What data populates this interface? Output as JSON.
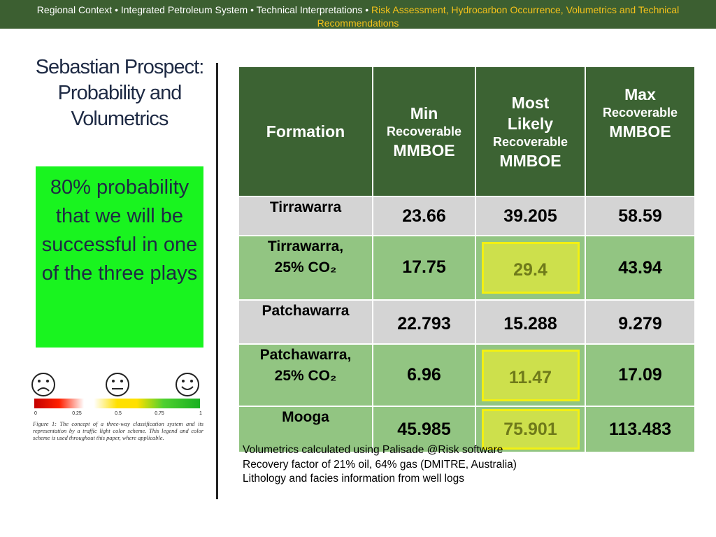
{
  "header": {
    "part1": "Regional Context • Integrated Petroleum System • Technical Interpretations • ",
    "highlight": "Risk Assessment,  Hydrocarbon Occurrence, Volumetrics and Technical Recommendations"
  },
  "title": "Sebastian Prospect: Probability and Volumetrics",
  "probability_box": "80% probability that we will be successful in one of the three plays",
  "legend": {
    "faces": [
      "sad-face",
      "neutral-face",
      "happy-face"
    ],
    "ticks": [
      "0",
      "0.25",
      "0.5",
      "0.75",
      "1"
    ],
    "colors": [
      "#c40000",
      "#ffffff",
      "#ffe000",
      "#18b020"
    ],
    "caption": "Figure 1: The concept of a three-way classification system and its representation by a traffic light color scheme. This legend and color scheme is used throughout this paper, where applicable."
  },
  "table": {
    "headers": {
      "formation": "Formation",
      "min": {
        "a": "Min",
        "b": "Recoverable",
        "c": "MMBOE"
      },
      "most_likely": {
        "a": "Most Likely",
        "b": "Recoverable",
        "c": "MMBOE"
      },
      "max": {
        "a": "Max",
        "b": "Recoverable",
        "c": "MMBOE"
      }
    },
    "rows": [
      {
        "formation": "Tirrawarra",
        "formation_sub": "",
        "min": "23.66",
        "most_likely": "39.205",
        "max": "58.59"
      },
      {
        "formation": "Tirrawarra,",
        "formation_sub": "25% CO₂",
        "min": "17.75",
        "most_likely": "29.4",
        "max": "43.94"
      },
      {
        "formation": "Patchawarra",
        "formation_sub": "",
        "min": "22.793",
        "most_likely": "15.288",
        "max": "9.279"
      },
      {
        "formation": "Patchawarra,",
        "formation_sub": "25% CO₂",
        "min": "6.96",
        "most_likely": "11.47",
        "max": "17.09"
      },
      {
        "formation": "Mooga",
        "formation_sub": "",
        "min": "45.985",
        "most_likely": "75.901",
        "max": "113.483"
      }
    ],
    "colors": {
      "header": "#3c6333",
      "gray_row": "#d4d4d4",
      "green_row": "#92c582",
      "highlight": "#cde04c",
      "highlight_border": "#f3f012"
    }
  },
  "notes": [
    "Volumetrics calculated using Palisade @Risk software",
    "Recovery factor of 21% oil, 64% gas (DMITRE, Australia)",
    "Lithology and facies information from well logs"
  ]
}
